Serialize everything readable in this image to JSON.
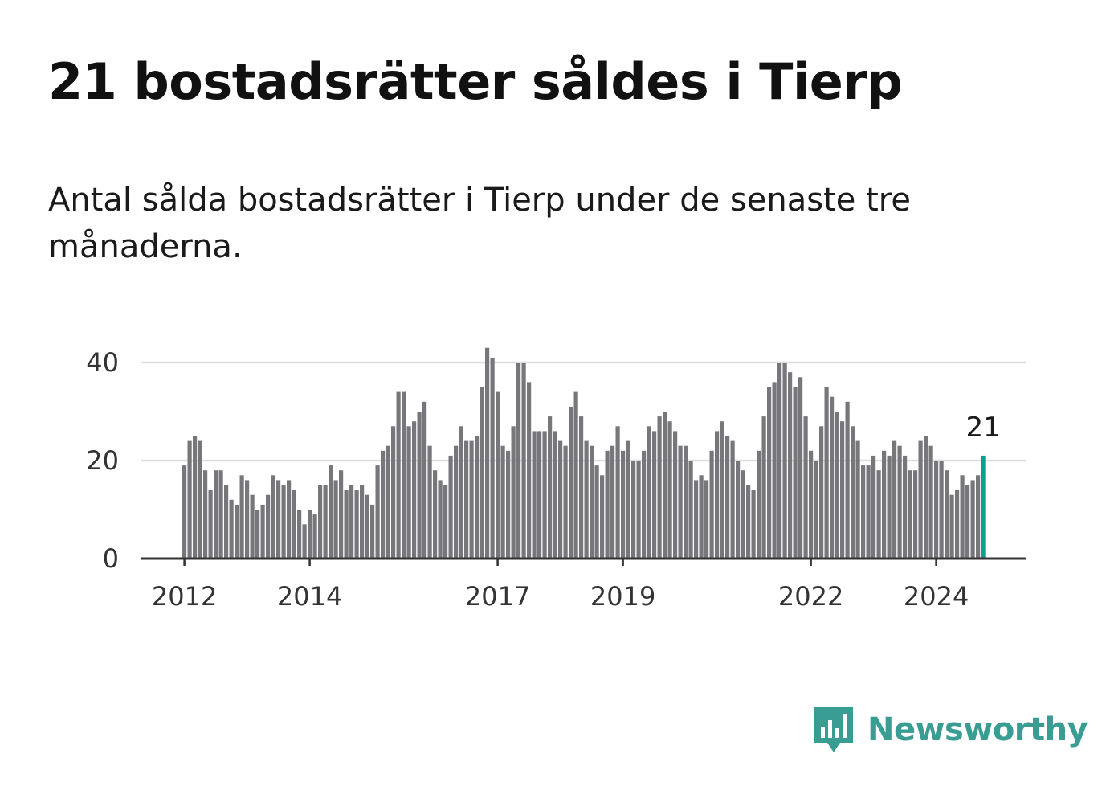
{
  "header": {
    "title": "21 bostadsrätter såldes i Tierp",
    "subtitle": "Antal sålda bostadsrätter i Tierp under de senaste tre månaderna."
  },
  "brand": {
    "name": "Newsworthy",
    "icon": "newsworthy-bar-chart-icon",
    "color": "#3a9d93"
  },
  "colors": {
    "bar": "#77767b",
    "highlight": "#149c8e",
    "grid": "#dddddd",
    "axis": "#333333"
  },
  "chart_data": {
    "type": "bar",
    "title": "21 bostadsrätter såldes i Tierp",
    "xlabel": "",
    "ylabel": "",
    "ylim": [
      0,
      45
    ],
    "yticks": [
      0,
      20,
      40
    ],
    "grid": true,
    "x_ticks": [
      {
        "label": "2012",
        "index": 0
      },
      {
        "label": "2014",
        "index": 24
      },
      {
        "label": "2017",
        "index": 60
      },
      {
        "label": "2019",
        "index": 84
      },
      {
        "label": "2022",
        "index": 120
      },
      {
        "label": "2024",
        "index": 144
      }
    ],
    "start": "2012-01",
    "values": [
      19,
      24,
      25,
      24,
      18,
      14,
      18,
      18,
      15,
      12,
      11,
      17,
      16,
      13,
      10,
      11,
      13,
      17,
      16,
      15,
      16,
      14,
      10,
      7,
      10,
      9,
      15,
      15,
      19,
      16,
      18,
      14,
      15,
      14,
      15,
      13,
      11,
      19,
      22,
      23,
      27,
      34,
      34,
      27,
      28,
      30,
      32,
      23,
      18,
      16,
      15,
      21,
      23,
      27,
      24,
      24,
      25,
      35,
      43,
      41,
      34,
      23,
      22,
      27,
      40,
      40,
      36,
      26,
      26,
      26,
      29,
      26,
      24,
      23,
      31,
      34,
      29,
      24,
      23,
      19,
      17,
      22,
      23,
      27,
      22,
      24,
      20,
      20,
      22,
      27,
      26,
      29,
      30,
      28,
      26,
      23,
      23,
      20,
      16,
      17,
      16,
      22,
      26,
      28,
      25,
      24,
      20,
      18,
      15,
      14,
      22,
      29,
      35,
      36,
      40,
      40,
      38,
      35,
      37,
      29,
      22,
      20,
      27,
      35,
      33,
      30,
      28,
      32,
      27,
      24,
      19,
      19,
      21,
      18,
      22,
      21,
      24,
      23,
      21,
      18,
      18,
      24,
      25,
      23,
      20,
      20,
      18,
      13,
      14,
      17,
      15,
      16,
      17,
      21
    ],
    "highlight_index": 153,
    "annotation": "21"
  }
}
